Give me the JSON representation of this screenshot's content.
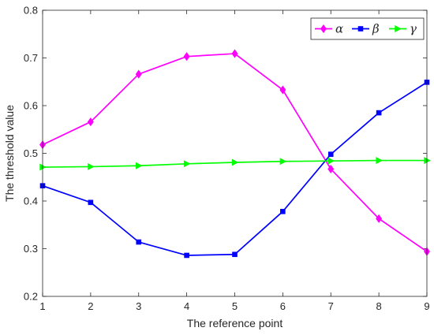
{
  "chart_data": {
    "type": "line",
    "title": "",
    "xlabel": "The reference point",
    "ylabel": "The threshold value",
    "x": [
      1,
      2,
      3,
      4,
      5,
      6,
      7,
      8,
      9
    ],
    "xlim": [
      1,
      9
    ],
    "ylim": [
      0.2,
      0.8
    ],
    "x_ticks": [
      "1",
      "2",
      "3",
      "4",
      "5",
      "6",
      "7",
      "8",
      "9"
    ],
    "y_ticks": [
      "0.2",
      "0.3",
      "0.4",
      "0.5",
      "0.6",
      "0.7",
      "0.8"
    ],
    "grid": false,
    "legend_position": "top-right",
    "legend_orientation": "horizontal",
    "series": [
      {
        "name": "α",
        "color": "#ff00ff",
        "marker": "diamond",
        "values": [
          0.518,
          0.566,
          0.666,
          0.703,
          0.709,
          0.633,
          0.467,
          0.363,
          0.294
        ]
      },
      {
        "name": "β",
        "color": "#0000ff",
        "marker": "square",
        "values": [
          0.432,
          0.397,
          0.314,
          0.286,
          0.288,
          0.378,
          0.498,
          0.585,
          0.649
        ]
      },
      {
        "name": "γ",
        "color": "#00ff00",
        "marker": "triangle-right",
        "values": [
          0.471,
          0.472,
          0.474,
          0.478,
          0.481,
          0.483,
          0.484,
          0.485,
          0.485
        ]
      }
    ]
  }
}
